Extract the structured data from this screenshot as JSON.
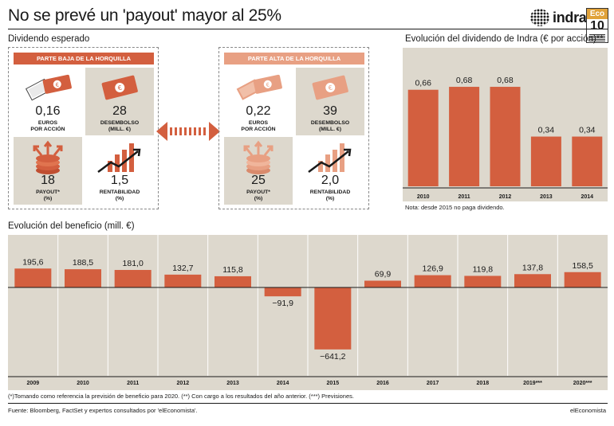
{
  "title": "No se prevé un 'payout' mayor al 25%",
  "brand": {
    "logo_text": "indra",
    "eco_top": "Eco",
    "eco_bottom": "10"
  },
  "dividend_section": {
    "label": "Dividendo esperado",
    "low": {
      "header": "PARTE BAJA DE LA HORQUILLA",
      "header_color": "#d35f3f",
      "euros_value": "0,16",
      "euros_label": "EUROS\nPOR ACCIÓN",
      "desembolso_value": "28",
      "desembolso_label": "DESEMBOLSO\n(MILL. €)",
      "payout_value": "18",
      "payout_label": "PAYOUT*\n(%)",
      "rentabilidad_value": "1,5",
      "rentabilidad_label": "RENTABILIDAD\n(%)"
    },
    "high": {
      "header": "PARTE ALTA DE LA HORQUILLA",
      "header_color": "#e8a083",
      "euros_value": "0,22",
      "euros_label": "EUROS\nPOR ACCIÓN",
      "desembolso_value": "39",
      "desembolso_label": "DESEMBOLSO\n(MILL. €)",
      "payout_value": "25",
      "payout_label": "PAYOUT*\n(%)",
      "rentabilidad_value": "2,0",
      "rentabilidad_label": "RENTABILIDAD\n(%)"
    }
  },
  "colors": {
    "bar": "#d35f3f",
    "bar_light": "#e8a083",
    "panel_shade": "#ddd8cd"
  },
  "chart_data": [
    {
      "type": "bar",
      "title": "Evolución del dividendo de Indra (€ por acción)**",
      "categories": [
        "2010",
        "2011",
        "2012",
        "2013",
        "2014"
      ],
      "values": [
        0.66,
        0.68,
        0.68,
        0.34,
        0.34
      ],
      "value_labels": [
        "0,66",
        "0,68",
        "0,68",
        "0,34",
        "0,34"
      ],
      "note": "Nota: desde 2015 no paga dividendo."
    },
    {
      "type": "bar",
      "title": "Evolución del beneficio (mill. €)",
      "categories": [
        "2009",
        "2010",
        "2011",
        "2012",
        "2013",
        "2014",
        "2015",
        "2016",
        "2017",
        "2018",
        "2019***",
        "2020***"
      ],
      "values": [
        195.6,
        188.5,
        181.0,
        132.7,
        115.8,
        -91.9,
        -641.2,
        69.9,
        126.9,
        119.8,
        137.8,
        158.5
      ],
      "value_labels": [
        "195,6",
        "188,5",
        "181,0",
        "132,7",
        "115,8",
        "−91,9",
        "−641,2",
        "69,9",
        "126,9",
        "119,8",
        "137,8",
        "158,5"
      ]
    }
  ],
  "footnote": "(*)Tomando como referencia la previsión de beneficio para 2020. (**) Con cargo a los resultados del año anterior. (***) Previsiones.",
  "source": "Fuente: Bloomberg, FactSet y expertos consultados por 'elEconomista'.",
  "publisher": "elEconomista"
}
